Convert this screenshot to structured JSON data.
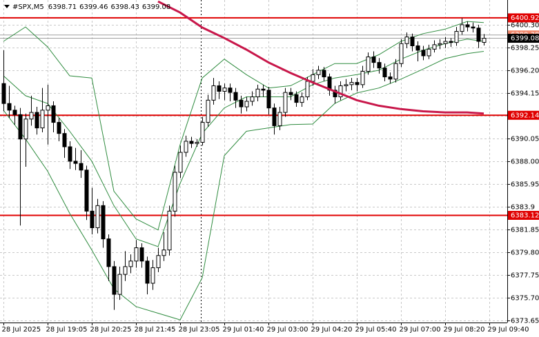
{
  "chart_data": {
    "type": "candlestick",
    "title": "#SPX,M5",
    "ylim": [
      6373.46,
      6402.53
    ],
    "yticks": [
      6373.65,
      {
        "value": 6375.7,
        "label": "6375.70"
      },
      6377.75,
      {
        "value": 6379.8,
        "label": "6379.80"
      },
      6381.85,
      6383.9,
      6385.95,
      {
        "value": 6388,
        "label": "6388.00"
      },
      6390.05,
      {
        "value": 6392.1,
        "label": "6392.10"
      },
      6394.15,
      {
        "value": 6396.2,
        "label": "6396.20"
      },
      6398.25,
      {
        "value": 6400.3,
        "label": "6400.30"
      }
    ],
    "xticks": [
      {
        "value": 0,
        "label": "28 Jul 2025"
      },
      {
        "value": 8,
        "label": "28 Jul 19:05"
      },
      {
        "value": 16,
        "label": "28 Jul 20:25"
      },
      {
        "value": 24,
        "label": "28 Jul 21:45"
      },
      {
        "value": 32,
        "label": "28 Jul 23:05"
      },
      {
        "value": 40,
        "label": "29 Jul 01:40"
      },
      {
        "value": 48,
        "label": "29 Jul 03:00"
      },
      {
        "value": 56,
        "label": "29 Jul 04:20"
      },
      {
        "value": 64,
        "label": "29 Jul 05:40"
      },
      {
        "value": 72,
        "label": "29 Jul 07:00"
      },
      {
        "value": 80,
        "label": "29 Jul 08:20"
      },
      {
        "value": 88,
        "label": "29 Jul 09:40"
      }
    ],
    "grid": true,
    "open": [
      6395.0,
      6393.2,
      6392.6,
      6392.2,
      6390.0,
      6391.8,
      6392.4,
      6391.0,
      6392.6,
      6393.0,
      6391.5,
      6390.5,
      6389.3,
      6388.0,
      6387.8,
      6387.2,
      6383.5,
      6382.0,
      6384.0,
      6381.0,
      6378.5,
      6376.0,
      6377.8,
      6378.5,
      6379.0,
      6380.2,
      6379.0,
      6377.0,
      6378.4,
      6379.5,
      6380.0,
      6383.5,
      6387.0,
      6388.8,
      6389.8,
      6389.6,
      6389.7,
      6391.5,
      6393.5,
      6394.8,
      6394.3,
      6394.6,
      6394.2,
      6393.5,
      6392.9,
      6393.4,
      6393.8,
      6394.5,
      6394.4,
      6392.8,
      6391.2,
      6392.4,
      6394.2,
      6394.0,
      6393.3,
      6393.8,
      6395.2,
      6395.8,
      6396.2,
      6395.6,
      6394.4,
      6393.8,
      6394.8,
      6394.9,
      6395.1,
      6394.9,
      6396.1,
      6397.4,
      6396.9,
      6396.4,
      6395.6,
      6395.4,
      6396.8,
      6398.6,
      6399.2,
      6398.4,
      6398.0,
      6397.5,
      6398.1,
      6398.5,
      6398.6,
      6398.8,
      6398.7,
      6399.7,
      6400.3,
      6400.1,
      6400.0,
      6398.71
    ],
    "high": [
      6398.0,
      6394.8,
      6393.0,
      6392.8,
      6392.3,
      6393.9,
      6392.9,
      6394.6,
      6394.9,
      6393.4,
      6391.9,
      6390.9,
      6389.8,
      6389.2,
      6389.0,
      6387.6,
      6385.6,
      6384.6,
      6384.4,
      6381.4,
      6379.0,
      6378.5,
      6379.9,
      6379.6,
      6380.9,
      6380.6,
      6379.4,
      6379.1,
      6380.2,
      6381.6,
      6384.0,
      6387.6,
      6389.4,
      6390.3,
      6390.2,
      6390.0,
      6392.0,
      6394.0,
      6395.5,
      6395.2,
      6395.0,
      6395.0,
      6394.6,
      6393.9,
      6393.8,
      6394.3,
      6394.9,
      6394.9,
      6394.7,
      6393.2,
      6392.9,
      6394.6,
      6394.6,
      6394.3,
      6394.2,
      6395.6,
      6396.3,
      6396.6,
      6396.5,
      6395.9,
      6394.8,
      6395.2,
      6395.4,
      6395.5,
      6395.5,
      6396.6,
      6397.8,
      6397.9,
      6397.3,
      6396.8,
      6396.0,
      6397.2,
      6399.0,
      6399.6,
      6399.5,
      6398.8,
      6398.4,
      6398.5,
      6398.9,
      6399.0,
      6399.2,
      6399.1,
      6400.1,
      6400.9,
      6400.6,
      6400.5,
      6400.3,
      6399.46
    ],
    "low": [
      6392.5,
      6391.9,
      6391.3,
      6382.2,
      6387.5,
      6391.2,
      6390.4,
      6390.6,
      6389.5,
      6390.6,
      6389.8,
      6388.3,
      6387.3,
      6387.2,
      6386.5,
      6382.7,
      6381.4,
      6381.5,
      6380.2,
      6377.2,
      6374.6,
      6375.5,
      6377.2,
      6377.9,
      6378.4,
      6378.4,
      6376.0,
      6376.4,
      6378.0,
      6379.0,
      6379.5,
      6383.0,
      6386.5,
      6388.4,
      6389.2,
      6389.3,
      6389.4,
      6391.1,
      6393.1,
      6393.6,
      6393.5,
      6393.4,
      6392.8,
      6392.3,
      6392.5,
      6393.0,
      6393.4,
      6393.8,
      6392.2,
      6390.4,
      6390.8,
      6392.0,
      6393.5,
      6392.9,
      6392.9,
      6393.5,
      6394.8,
      6395.4,
      6395.2,
      6393.9,
      6393.2,
      6393.5,
      6394.3,
      6394.4,
      6394.3,
      6394.6,
      6395.8,
      6396.4,
      6395.9,
      6395.2,
      6395.0,
      6395.1,
      6396.5,
      6398.2,
      6397.9,
      6397.0,
      6397.1,
      6397.2,
      6397.8,
      6398.1,
      6398.2,
      6398.3,
      6398.4,
      6399.4,
      6399.7,
      6399.6,
      6398.2,
      6398.43
    ],
    "close": [
      6393.2,
      6392.6,
      6392.2,
      6390.0,
      6391.8,
      6392.4,
      6391.0,
      6392.6,
      6393.0,
      6391.5,
      6390.5,
      6389.3,
      6388.0,
      6387.8,
      6387.2,
      6383.5,
      6382.0,
      6384.0,
      6381.0,
      6378.5,
      6376.0,
      6377.8,
      6378.5,
      6379.0,
      6380.2,
      6379.0,
      6377.0,
      6378.4,
      6379.5,
      6380.0,
      6383.5,
      6387.0,
      6388.8,
      6389.8,
      6389.6,
      6389.7,
      6391.5,
      6393.5,
      6394.8,
      6394.3,
      6394.6,
      6394.2,
      6393.5,
      6392.9,
      6393.4,
      6393.8,
      6394.5,
      6394.4,
      6392.8,
      6391.2,
      6392.4,
      6394.2,
      6394.0,
      6393.3,
      6393.8,
      6395.2,
      6395.8,
      6396.2,
      6395.6,
      6394.4,
      6393.8,
      6394.8,
      6394.9,
      6395.1,
      6394.9,
      6396.1,
      6397.4,
      6396.9,
      6396.4,
      6395.6,
      6395.4,
      6396.8,
      6398.6,
      6399.2,
      6398.4,
      6398.0,
      6397.5,
      6398.1,
      6398.5,
      6398.6,
      6398.8,
      6398.7,
      6399.7,
      6400.3,
      6400.1,
      6400.0,
      6398.8,
      6399.08
    ],
    "overlays": [
      {
        "color": "#2e8b3e",
        "x": [
          0,
          4,
          8,
          12,
          16,
          20,
          24,
          28,
          32,
          36,
          40,
          44,
          48,
          52,
          56,
          60,
          64,
          68,
          72,
          76,
          80,
          84,
          87
        ],
        "values": [
          6398.8,
          6400.1,
          6398.3,
          6395.7,
          6395.5,
          6385.3,
          6382.8,
          6381.8,
          6389.5,
          6395.5,
          6397.2,
          6395.8,
          6394.6,
          6394.8,
          6395.8,
          6396.8,
          6396.8,
          6397.6,
          6398.8,
          6399.5,
          6399.9,
          6400.6,
          6400.5
        ]
      },
      {
        "color": "#2e8b3e",
        "x": [
          0,
          4,
          8,
          12,
          16,
          20,
          24,
          28,
          32,
          36,
          40,
          44,
          48,
          52,
          56,
          60,
          64,
          68,
          72,
          76,
          80,
          84,
          87
        ],
        "values": [
          6395.7,
          6393.9,
          6393.2,
          6390.7,
          6388.0,
          6384.0,
          6381.0,
          6380.3,
          6386.0,
          6390.5,
          6392.8,
          6393.8,
          6393.8,
          6393.8,
          6394.9,
          6395.5,
          6395.8,
          6396.2,
          6397.2,
          6398.0,
          6398.6,
          6399.0,
          6398.8
        ]
      },
      {
        "color": "#2e8b3e",
        "x": [
          0,
          4,
          8,
          12,
          16,
          20,
          24,
          28,
          32,
          36,
          40,
          44,
          48,
          52,
          56,
          60,
          64,
          68,
          72,
          76,
          80,
          84,
          87
        ],
        "values": [
          6392.6,
          6390.0,
          6387.1,
          6383.3,
          6380.0,
          6376.5,
          6374.9,
          6374.3,
          6373.7,
          6377.5,
          6388.5,
          6390.7,
          6391.0,
          6391.3,
          6391.35,
          6393.2,
          6394.15,
          6394.6,
          6395.4,
          6396.3,
          6397.25,
          6397.7,
          6397.9
        ]
      },
      {
        "color": "#c8174a",
        "bold": true,
        "x": [
          28,
          32,
          36,
          40,
          44,
          48,
          52,
          56,
          60,
          64,
          68,
          72,
          76,
          80,
          84,
          87
        ],
        "values": [
          6402.4,
          6401.4,
          6400.05,
          6399.1,
          6398.06,
          6396.9,
          6395.95,
          6395.1,
          6394.3,
          6393.5,
          6393.0,
          6392.7,
          6392.5,
          6392.4,
          6392.4,
          6392.3
        ]
      }
    ],
    "levels": [
      {
        "value": 6400.92,
        "color": "#e00000"
      },
      {
        "value": 6392.14,
        "color": "#e00000"
      },
      {
        "value": 6383.12,
        "color": "#e00000"
      }
    ],
    "price_lines": [
      {
        "value": 6399.38,
        "color": "#f0866a"
      },
      {
        "value": 6399.08,
        "color": "#000000"
      }
    ]
  }
}
